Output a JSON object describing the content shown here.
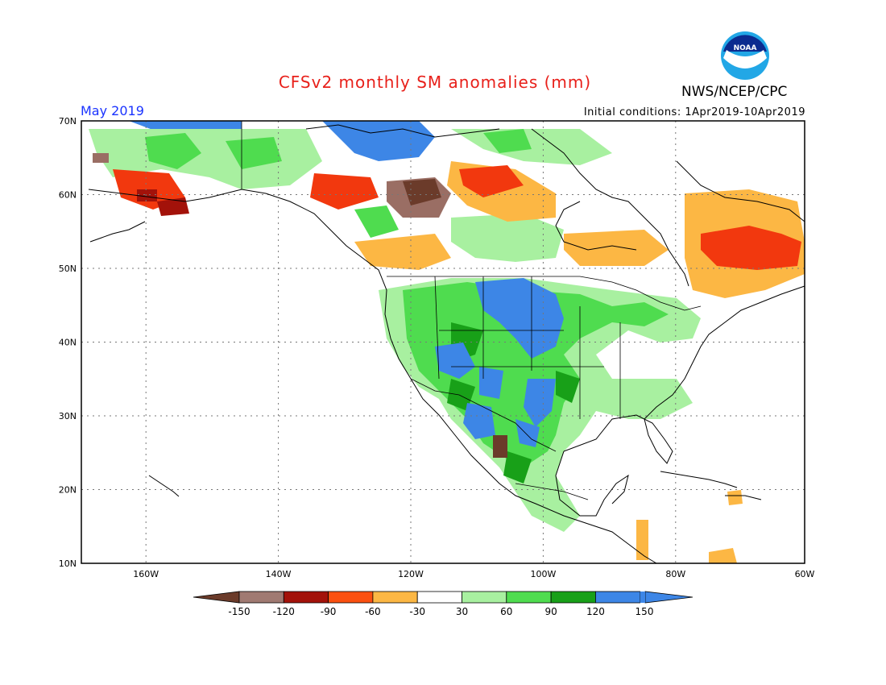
{
  "header": {
    "title": "CFSv2 monthly SM anomalies (mm)",
    "agency": "NWS/NCEP/CPC",
    "logo_text": "NOAA",
    "valid_month": "May 2019",
    "initial_conditions": "Initial conditions: 1Apr2019-10Apr2019"
  },
  "map": {
    "lon_range": [
      -172,
      -60
    ],
    "lat_range": [
      10,
      70
    ],
    "lat_labels": [
      {
        "lat": 70,
        "text": "70N"
      },
      {
        "lat": 60,
        "text": "60N"
      },
      {
        "lat": 50,
        "text": "50N"
      },
      {
        "lat": 40,
        "text": "40N"
      },
      {
        "lat": 30,
        "text": "30N"
      },
      {
        "lat": 20,
        "text": "20N"
      },
      {
        "lat": 10,
        "text": "10N"
      }
    ],
    "lon_labels": [
      {
        "lon": -160,
        "text": "160W"
      },
      {
        "lon": -140,
        "text": "140W"
      },
      {
        "lon": -120,
        "text": "120W"
      },
      {
        "lon": -100,
        "text": "100W"
      },
      {
        "lon": -80,
        "text": "80W"
      },
      {
        "lon": -60,
        "text": "60W"
      }
    ],
    "regions": [
      {
        "category": "wet_150",
        "color": "#3d86e6",
        "area": "northern Plains / Missouri basin"
      },
      {
        "category": "wet_150",
        "color": "#3d86e6",
        "area": "central and southern Rockies"
      },
      {
        "category": "wet_150",
        "color": "#3d86e6",
        "area": "northern Mexico"
      },
      {
        "category": "wet_150",
        "color": "#3d86e6",
        "area": "northern Canadian archipelago"
      },
      {
        "category": "wet_90",
        "color": "#4fdc4f",
        "area": "western and central United States"
      },
      {
        "category": "wet_30",
        "color": "#a8f0a0",
        "area": "Great Basin and Southeast United States"
      },
      {
        "category": "dry_60",
        "color": "#fcb744",
        "area": "Quebec and Labrador"
      },
      {
        "category": "dry_90",
        "color": "#f2380e",
        "area": "eastern Quebec"
      },
      {
        "category": "dry_90",
        "color": "#f2380e",
        "area": "Northwest Territories / Mackenzie"
      },
      {
        "category": "dry_60",
        "color": "#fcb744",
        "area": "northern Alberta / Saskatchewan"
      },
      {
        "category": "dry_120",
        "color": "#a3120a",
        "area": "southern Alaska"
      },
      {
        "category": "dry_150",
        "color": "#9a6e64",
        "area": "Yukon"
      }
    ]
  },
  "colorbar": {
    "colors": [
      "#6b3b2a",
      "#a07a72",
      "#a3120a",
      "#e52415",
      "#fb5010",
      "#fcb744",
      "#ffffff",
      "#a8f0a0",
      "#4fdc4f",
      "#18a018",
      "#3d86e6",
      "#3d86e6"
    ],
    "labels": [
      "-150",
      "-120",
      "-90",
      "-60",
      "-30",
      "30",
      "60",
      "90",
      "120",
      "150"
    ]
  }
}
